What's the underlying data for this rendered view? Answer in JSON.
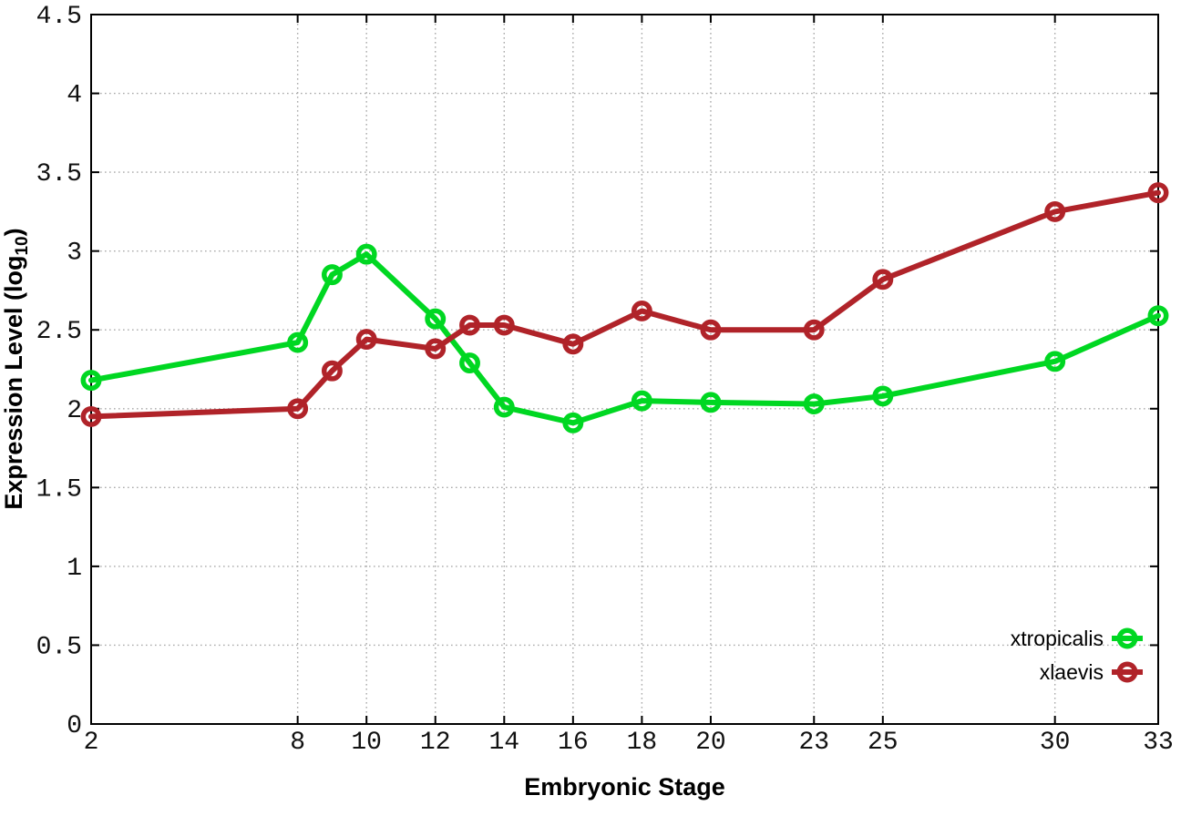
{
  "figure": {
    "background": "#ffffff",
    "border_color": "#000000",
    "grid_color": "#aaaaaa",
    "tick_label_color": "#111111"
  },
  "chart_data": {
    "type": "line",
    "title": "",
    "xlabel": "Embryonic Stage",
    "ylabel": "Expression Level (log10)",
    "ylabel_parts": {
      "main": "Expression Level (log",
      "sub": "10",
      "end": ")"
    },
    "x": [
      2,
      8,
      9,
      10,
      12,
      13,
      14,
      16,
      18,
      20,
      23,
      25,
      30,
      33
    ],
    "xlim": [
      2,
      33
    ],
    "ylim": [
      0,
      4.5
    ],
    "xticks": [
      2,
      8,
      10,
      12,
      14,
      16,
      18,
      20,
      23,
      25,
      30,
      33
    ],
    "yticks": [
      0,
      0.5,
      1,
      1.5,
      2,
      2.5,
      3,
      3.5,
      4,
      4.5
    ],
    "grid": true,
    "legend_position": "bottom-right-inside",
    "series": [
      {
        "name": "xtropicalis",
        "color": "#00d722",
        "marker": "open-circle",
        "values": [
          2.18,
          2.42,
          2.85,
          2.98,
          2.57,
          2.29,
          2.01,
          1.91,
          2.05,
          2.04,
          2.03,
          2.08,
          2.3,
          2.59
        ]
      },
      {
        "name": "xlaevis",
        "color": "#b02329",
        "marker": "open-circle",
        "values": [
          1.95,
          2.0,
          2.24,
          2.44,
          2.38,
          2.53,
          2.53,
          2.41,
          2.62,
          2.5,
          2.5,
          2.82,
          3.25,
          3.37
        ]
      }
    ]
  }
}
